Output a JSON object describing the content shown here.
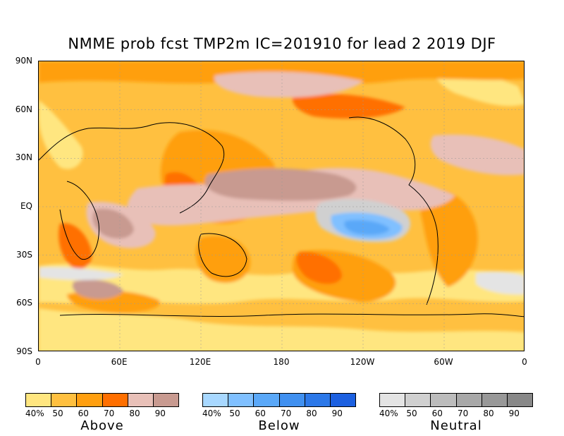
{
  "title": "NMME prob fcst TMP2m IC=201910 for lead 2 2019 DJF",
  "lat_axis": [
    "90N",
    "60N",
    "30N",
    "EQ",
    "30S",
    "60S",
    "90S"
  ],
  "lon_axis": [
    "0",
    "60E",
    "120E",
    "180",
    "120W",
    "60W",
    "0"
  ],
  "legends": [
    {
      "name": "Above",
      "ticks": [
        "40%",
        "50",
        "60",
        "70",
        "80",
        "90"
      ],
      "colors": [
        "#ffe680",
        "#ffc040",
        "#ff9f10",
        "#ff6f00",
        "#e8c0b8",
        "#c89a90"
      ]
    },
    {
      "name": "Below",
      "ticks": [
        "40%",
        "50",
        "60",
        "70",
        "80",
        "90"
      ],
      "colors": [
        "#a8d8ff",
        "#80c0ff",
        "#5aa8f8",
        "#4090f0",
        "#2c78e8",
        "#1c60e0"
      ]
    },
    {
      "name": "Neutral",
      "ticks": [
        "40%",
        "50",
        "60",
        "70",
        "80",
        "90"
      ],
      "colors": [
        "#e4e4e4",
        "#d0d0d0",
        "#bcbcbc",
        "#a8a8a8",
        "#989898",
        "#888888"
      ]
    }
  ]
}
